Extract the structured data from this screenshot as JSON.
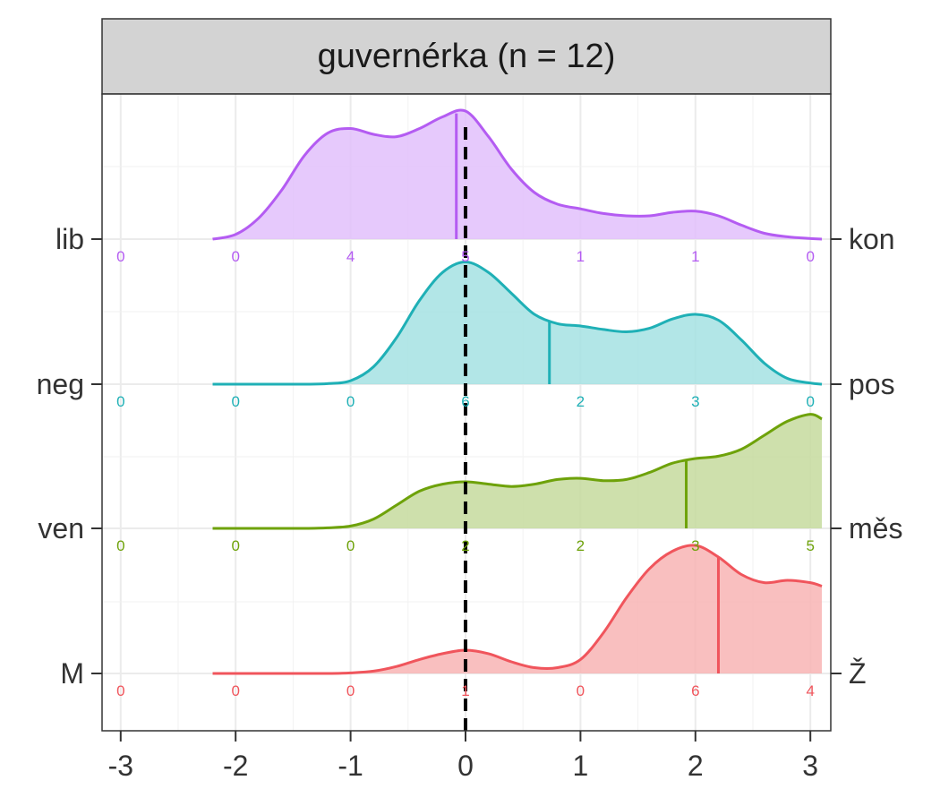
{
  "chart_data": {
    "type": "ridgeline",
    "title": "guvernérka (n = 12)",
    "xlabel": "",
    "ylabel": "",
    "xlim": [
      -3.1,
      3.1
    ],
    "x_ticks": [
      -3,
      -2,
      -1,
      0,
      1,
      2,
      3
    ],
    "x_tick_labels": [
      "-3",
      "-2",
      "-1",
      "0",
      "1",
      "2",
      "3"
    ],
    "reference_line": {
      "x": 0,
      "style": "dashed",
      "color": "#000000"
    },
    "grid": true,
    "legend": "none",
    "count_positions": [
      -3,
      -2,
      -1,
      0,
      1,
      2,
      3
    ],
    "density_x": [
      -2.2,
      -2.0,
      -1.8,
      -1.6,
      -1.4,
      -1.2,
      -1.0,
      -0.8,
      -0.6,
      -0.4,
      -0.2,
      0.0,
      0.2,
      0.4,
      0.6,
      0.8,
      1.0,
      1.2,
      1.4,
      1.6,
      1.8,
      2.0,
      2.2,
      2.4,
      2.6,
      2.8,
      3.0,
      3.1
    ],
    "series": [
      {
        "left_label": "M",
        "right_label": "Ž",
        "color": "#F0555C",
        "fill": "#F8B4B4",
        "counts": [
          0,
          0,
          0,
          1,
          0,
          6,
          4
        ],
        "mean": 2.2,
        "density": [
          0.0,
          0.0,
          0.0,
          0.0,
          0.0,
          0.0,
          0.005,
          0.02,
          0.06,
          0.12,
          0.17,
          0.2,
          0.17,
          0.1,
          0.05,
          0.05,
          0.12,
          0.35,
          0.65,
          0.9,
          1.05,
          1.1,
          1.0,
          0.85,
          0.78,
          0.8,
          0.78,
          0.75
        ]
      },
      {
        "left_label": "ven",
        "right_label": "měs",
        "color": "#6EA20A",
        "fill": "#C5DA9E",
        "counts": [
          0,
          0,
          0,
          2,
          2,
          3,
          5
        ],
        "mean": 1.92,
        "density": [
          0.0,
          0.0,
          0.0,
          0.0,
          0.0,
          0.005,
          0.02,
          0.08,
          0.2,
          0.32,
          0.38,
          0.4,
          0.38,
          0.36,
          0.38,
          0.42,
          0.43,
          0.41,
          0.42,
          0.48,
          0.56,
          0.6,
          0.62,
          0.68,
          0.8,
          0.92,
          0.98,
          0.94
        ]
      },
      {
        "left_label": "neg",
        "right_label": "pos",
        "color": "#1FB0B6",
        "fill": "#A5E2E3",
        "counts": [
          0,
          0,
          0,
          6,
          2,
          3,
          0
        ],
        "mean": 0.73,
        "density": [
          0.0,
          0.0,
          0.0,
          0.0,
          0.0,
          0.005,
          0.03,
          0.15,
          0.4,
          0.72,
          0.96,
          1.05,
          0.96,
          0.78,
          0.6,
          0.52,
          0.5,
          0.47,
          0.45,
          0.48,
          0.56,
          0.6,
          0.55,
          0.38,
          0.18,
          0.05,
          0.01,
          0.0
        ]
      },
      {
        "left_label": "lib",
        "right_label": "kon",
        "color": "#B45CF2",
        "fill": "#E2C0FC",
        "counts": [
          0,
          0,
          4,
          5,
          1,
          1,
          0
        ],
        "mean": -0.08,
        "density": [
          0.0,
          0.04,
          0.18,
          0.42,
          0.72,
          0.91,
          0.95,
          0.9,
          0.88,
          0.95,
          1.05,
          1.1,
          0.88,
          0.6,
          0.4,
          0.3,
          0.26,
          0.22,
          0.2,
          0.2,
          0.23,
          0.24,
          0.2,
          0.12,
          0.05,
          0.02,
          0.005,
          0.0
        ]
      }
    ]
  }
}
